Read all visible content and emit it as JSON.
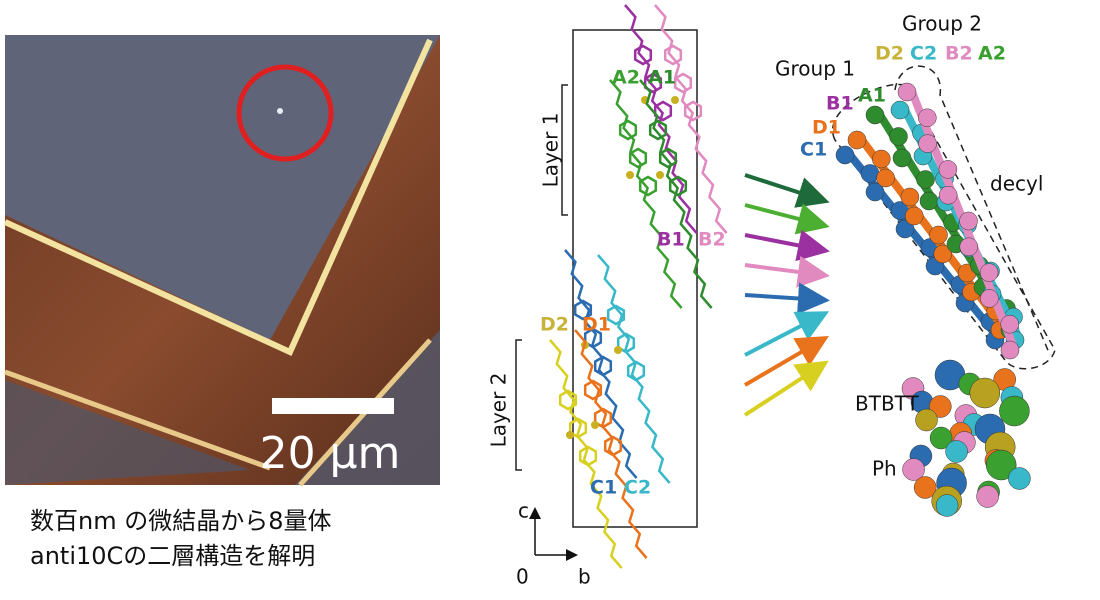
{
  "micrograph": {
    "scale_bar_label": "20 μm"
  },
  "caption": [
    "数百nm の微結晶から8量体",
    "anti10Cの二層構造を解明"
  ],
  "packing": {
    "layers": [
      "Layer 1",
      "Layer 2"
    ],
    "molecules": [
      "A2",
      "A1",
      "B1",
      "B2",
      "D2",
      "D1",
      "C1",
      "C2"
    ],
    "axes": {
      "c": "c",
      "b": "b",
      "origin": "0"
    }
  },
  "model": {
    "groups": [
      "Group 1",
      "Group 2"
    ],
    "group2_labels": [
      "D2",
      "C2",
      "B2",
      "A2"
    ],
    "group1_labels": [
      "B1",
      "A1",
      "D1",
      "C1"
    ],
    "annotations": [
      "decyl",
      "BTBTT",
      "Ph"
    ]
  }
}
